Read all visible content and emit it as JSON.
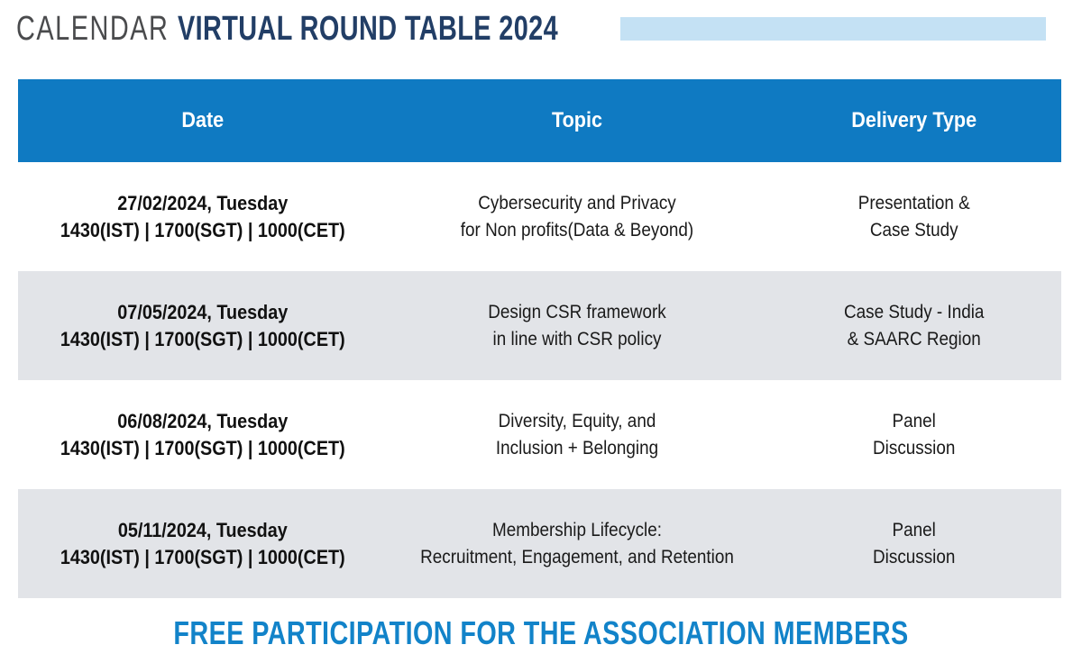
{
  "title": {
    "prefix": "CALENDAR ",
    "main": "VIRTUAL ROUND TABLE 2024"
  },
  "colors": {
    "header_bg": "#0f7ac2",
    "alt_row_bg": "#e2e4e8",
    "accent_bar": "#c4e1f4",
    "title_main": "#223e66",
    "title_prefix": "#4a4b4d",
    "footer_text": "#1283c9"
  },
  "table": {
    "columns": [
      "Date",
      "Topic",
      "Delivery Type"
    ],
    "rows": [
      {
        "date_line1": "27/02/2024, Tuesday",
        "date_line2": "1430(IST) | 1700(SGT) | 1000(CET)",
        "topic_line1": "Cybersecurity and Privacy",
        "topic_line2": "for Non profits(Data & Beyond)",
        "delivery_line1": "Presentation &",
        "delivery_line2": "Case Study"
      },
      {
        "date_line1": "07/05/2024, Tuesday",
        "date_line2": "1430(IST) | 1700(SGT) | 1000(CET)",
        "topic_line1": "Design CSR framework",
        "topic_line2": "in line with CSR policy",
        "delivery_line1": "Case Study - India",
        "delivery_line2": "& SAARC Region"
      },
      {
        "date_line1": "06/08/2024, Tuesday",
        "date_line2": "1430(IST) | 1700(SGT) | 1000(CET)",
        "topic_line1": "Diversity, Equity, and",
        "topic_line2": "Inclusion + Belonging",
        "delivery_line1": "Panel",
        "delivery_line2": "Discussion"
      },
      {
        "date_line1": "05/11/2024, Tuesday",
        "date_line2": "1430(IST) | 1700(SGT) | 1000(CET)",
        "topic_line1": "Membership Lifecycle:",
        "topic_line2": "Recruitment, Engagement, and Retention",
        "delivery_line1": "Panel",
        "delivery_line2": "Discussion"
      }
    ]
  },
  "footer": {
    "text": "FREE PARTICIPATION FOR THE ASSOCIATION MEMBERS"
  }
}
